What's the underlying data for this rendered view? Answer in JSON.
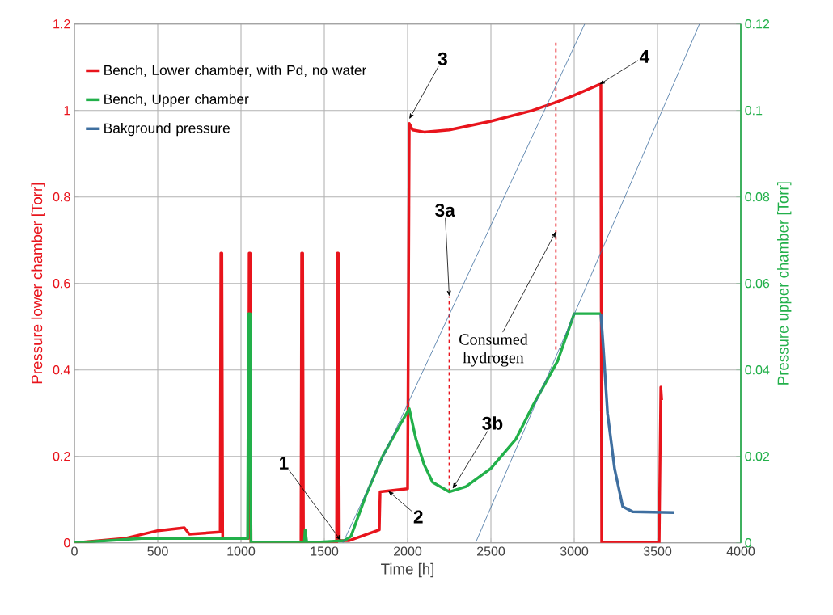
{
  "chart_data": {
    "type": "line",
    "xlabel": "Time [h]",
    "ylabel": "Pressure lower chamber [Torr]",
    "y2label": "Pressure upper chamber [Torr]",
    "xlim": [
      0,
      4000
    ],
    "xticks": [
      0,
      500,
      1000,
      1500,
      2000,
      2500,
      3000,
      3500,
      4000
    ],
    "ylim": [
      0,
      1.2
    ],
    "yticks": [
      0,
      0.2,
      0.4,
      0.6,
      0.8,
      1,
      1.2
    ],
    "y2lim": [
      0,
      0.12
    ],
    "y2ticks": [
      0,
      0.02,
      0.04,
      0.06,
      0.08,
      0.1,
      0.12
    ],
    "grid": true,
    "legend": "top left",
    "annotations": [
      {
        "text": "1",
        "x": 1600,
        "y": 0.005
      },
      {
        "text": "2",
        "x": 1883,
        "y": 0.12
      },
      {
        "text": "3",
        "x": 2010,
        "y": 0.98
      },
      {
        "text": "3a",
        "x": 2250,
        "y": 0.57
      },
      {
        "text": "3b",
        "x": 2270,
        "y": 0.125
      },
      {
        "text": "4",
        "x": 3150,
        "y": 1.06
      },
      {
        "text": "Consumed hydrogen",
        "x": 2890,
        "y": 0.72
      }
    ],
    "series": [
      {
        "name": "Bench, Lower chamber, with Pd, no water",
        "color": "#e8141c",
        "x": [
          0,
          300,
          500,
          660,
          690,
          875,
          879,
          885,
          890,
          1045,
          1049,
          1055,
          1060,
          1360,
          1364,
          1370,
          1375,
          1574,
          1578,
          1584,
          1590,
          1650,
          1830,
          1835,
          2000,
          2010,
          2030,
          2100,
          2250,
          2500,
          2750,
          2900,
          3000,
          3150,
          3160,
          3165,
          3510,
          3520,
          3525
        ],
        "values": [
          0,
          0.01,
          0.028,
          0.035,
          0.02,
          0.025,
          0.67,
          0.67,
          0.01,
          0.01,
          0.67,
          0.67,
          0,
          0,
          0.67,
          0.67,
          0,
          0,
          0.67,
          0.67,
          0.005,
          0.005,
          0.03,
          0.118,
          0.125,
          0.97,
          0.955,
          0.95,
          0.955,
          0.975,
          1.0,
          1.02,
          1.035,
          1.06,
          1.06,
          0,
          0,
          0.36,
          0.33
        ]
      },
      {
        "name": "Bench, Upper chamber",
        "color": "#22b04a",
        "axis": "y2",
        "x": [
          0,
          200,
          400,
          1040,
          1045,
          1055,
          1060,
          1380,
          1385,
          1395,
          1620,
          1660,
          1750,
          1850,
          1950,
          2010,
          2050,
          2100,
          2150,
          2250,
          2350,
          2500,
          2650,
          2750,
          2900,
          3000,
          3160
        ],
        "values": [
          0,
          0.0005,
          0.001,
          0.001,
          0.053,
          0.053,
          0,
          0,
          0.003,
          0,
          0.0005,
          0.0015,
          0.011,
          0.02,
          0.027,
          0.031,
          0.024,
          0.018,
          0.014,
          0.0118,
          0.013,
          0.0172,
          0.024,
          0.0316,
          0.042,
          0.053,
          0.053
        ]
      },
      {
        "name": "Bakground pressure",
        "color": "#3f6fa0",
        "axis": "y2",
        "x": [
          3160,
          3175,
          3200,
          3243,
          3291,
          3350,
          3600
        ],
        "values": [
          0.053,
          0.045,
          0.03,
          0.017,
          0.0084,
          0.0072,
          0.007
        ]
      },
      {
        "color": "#3f6fa0",
        "axis": "y2",
        "x": [
          1612,
          3063
        ],
        "values": [
          0,
          0.12
        ]
      },
      {
        "color": "#3f6fa0",
        "axis": "y2",
        "x": [
          2408,
          3752
        ],
        "values": [
          0,
          0.12
        ]
      },
      {
        "color": "#e8141c",
        "line_style": "dashed",
        "x": [
          2250,
          2250
        ],
        "values": [
          0.118,
          0.57
        ]
      },
      {
        "color": "#e8141c",
        "line_style": "dashed",
        "x": [
          2890,
          2890
        ],
        "values": [
          0.447,
          1.157
        ]
      }
    ]
  }
}
